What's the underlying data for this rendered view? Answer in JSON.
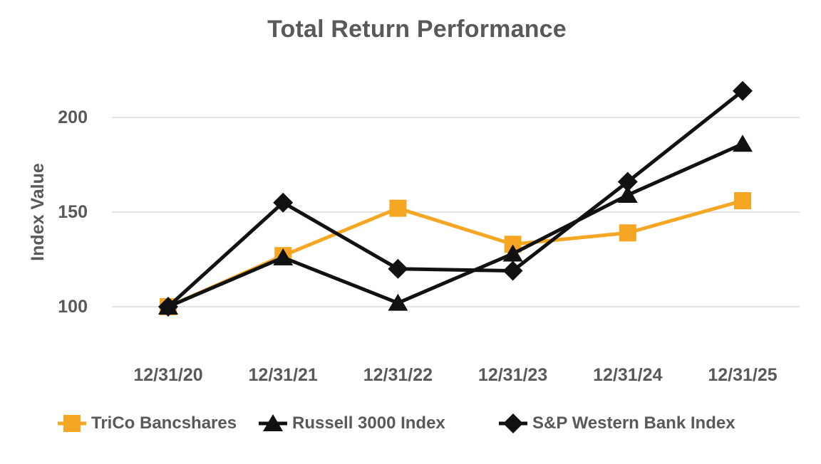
{
  "chart": {
    "title": "Total Return Performance",
    "y_axis_label": "Index Value"
  },
  "chart_data": {
    "type": "line",
    "title": "Total Return Performance",
    "xlabel": "",
    "ylabel": "Index Value",
    "categories": [
      "12/31/20",
      "12/31/21",
      "12/31/22",
      "12/31/23",
      "12/31/24",
      "12/31/25"
    ],
    "series": [
      {
        "name": "TriCo Bancshares",
        "marker": "square",
        "color": "#F5A623",
        "values": [
          100,
          127,
          152,
          133,
          139,
          156
        ]
      },
      {
        "name": "Russell 3000 Index",
        "marker": "triangle",
        "color": "#111111",
        "values": [
          100,
          126,
          102,
          128,
          159,
          186
        ]
      },
      {
        "name": "S&P Western Bank Index",
        "marker": "diamond",
        "color": "#111111",
        "values": [
          100,
          155,
          120,
          119,
          166,
          214
        ]
      }
    ],
    "y_ticks": [
      100,
      150,
      200
    ],
    "ylim": [
      80,
      230
    ],
    "grid": "horizontal-only",
    "legend_position": "bottom",
    "colors": {
      "text": "#595959",
      "gridline": "#E3E3E3",
      "accent_orange": "#F5A623",
      "series_black": "#111111",
      "background": "#FFFFFF"
    }
  }
}
